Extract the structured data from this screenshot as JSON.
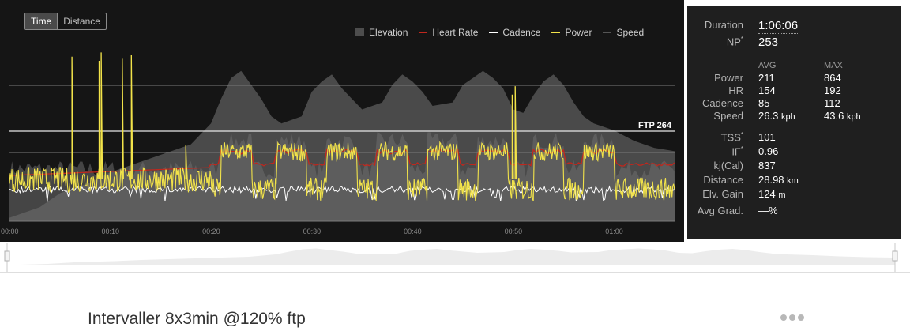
{
  "toggle": {
    "time": "Time",
    "distance": "Distance"
  },
  "legend": [
    {
      "label": "Elevation",
      "color": "#4d4d4d",
      "kind": "box"
    },
    {
      "label": "Heart Rate",
      "color": "#c0271d",
      "kind": "line"
    },
    {
      "label": "Cadence",
      "color": "#ffffff",
      "kind": "line"
    },
    {
      "label": "Power",
      "color": "#f2e34a",
      "kind": "line"
    },
    {
      "label": "Speed",
      "color": "#555555",
      "kind": "line"
    }
  ],
  "ftp_label": "FTP 264",
  "stats": {
    "duration_label": "Duration",
    "duration": "1:06:06",
    "np_label": "NP",
    "np_sup": "*",
    "np": "253",
    "avg_head": "AVG",
    "max_head": "MAX",
    "power_label": "Power",
    "power_avg": "211",
    "power_max": "864",
    "hr_label": "HR",
    "hr_avg": "154",
    "hr_max": "192",
    "cadence_label": "Cadence",
    "cadence_avg": "85",
    "cadence_max": "112",
    "speed_label": "Speed",
    "speed_avg": "26.3",
    "speed_max": "43.6",
    "speed_unit": "kph",
    "tss_label": "TSS",
    "tss_sup": "*",
    "tss": "101",
    "if_label": "IF",
    "if_sup": "*",
    "if": "0.96",
    "kj_label": "kj(Cal)",
    "kj": "837",
    "distance_label": "Distance",
    "distance": "28.98",
    "distance_unit": "km",
    "gain_label": "Elv. Gain",
    "gain": "124",
    "gain_unit": "m",
    "grad_label": "Avg Grad.",
    "grad": "—%"
  },
  "workout_title": "Intervaller 8x3min @120% ftp",
  "chart_data": {
    "type": "line",
    "x_unit": "minutes",
    "xlim": [
      0,
      66.1
    ],
    "x_ticks": [
      0,
      10,
      20,
      30,
      40,
      50,
      60
    ],
    "x_tick_labels": [
      "00:00",
      "00:10",
      "00:20",
      "00:30",
      "00:40",
      "00:50",
      "01:00"
    ],
    "y_power_lim": [
      0,
      880
    ],
    "ftp": 264,
    "intervals": [
      [
        21,
        24
      ],
      [
        26.5,
        29.5
      ],
      [
        31.5,
        34.5
      ],
      [
        36.5,
        39.5
      ],
      [
        41.5,
        44.5
      ],
      [
        46.5,
        49.5
      ],
      [
        52,
        55
      ],
      [
        57,
        60
      ]
    ],
    "elevation_profile": [
      [
        0,
        5
      ],
      [
        3,
        20
      ],
      [
        5,
        40
      ],
      [
        8,
        55
      ],
      [
        10,
        70
      ],
      [
        12,
        80
      ],
      [
        15,
        95
      ],
      [
        18,
        110
      ],
      [
        20,
        140
      ],
      [
        21,
        175
      ],
      [
        22,
        205
      ],
      [
        23,
        215
      ],
      [
        24,
        195
      ],
      [
        25,
        175
      ],
      [
        26,
        150
      ],
      [
        27,
        140
      ],
      [
        29,
        150
      ],
      [
        30,
        185
      ],
      [
        31,
        200
      ],
      [
        32,
        210
      ],
      [
        33,
        190
      ],
      [
        34,
        175
      ],
      [
        35,
        160
      ],
      [
        37,
        170
      ],
      [
        38,
        195
      ],
      [
        39,
        210
      ],
      [
        40,
        200
      ],
      [
        41,
        185
      ],
      [
        42,
        165
      ],
      [
        44,
        170
      ],
      [
        45,
        195
      ],
      [
        46,
        205
      ],
      [
        47,
        215
      ],
      [
        48,
        205
      ],
      [
        49,
        190
      ],
      [
        50,
        160
      ],
      [
        51,
        155
      ],
      [
        52,
        180
      ],
      [
        53,
        200
      ],
      [
        54,
        210
      ],
      [
        55,
        195
      ],
      [
        56,
        170
      ],
      [
        57,
        150
      ],
      [
        58,
        140
      ],
      [
        60,
        130
      ],
      [
        62,
        115
      ],
      [
        64,
        105
      ],
      [
        66.1,
        100
      ]
    ],
    "power_spikes": [
      [
        6.2,
        780
      ],
      [
        8.9,
        760
      ],
      [
        9.1,
        800
      ],
      [
        11.2,
        770
      ],
      [
        12.1,
        790
      ],
      [
        17.5,
        360
      ],
      [
        49.9,
        600
      ],
      [
        50.2,
        640
      ]
    ],
    "power_levels": {
      "base": 185,
      "interval": 330,
      "recovery": 130
    },
    "heart_rate": {
      "start": 110,
      "mid": 150,
      "interval_peak": 175,
      "end": 160
    },
    "cadence_avg": 85,
    "speed_avg": 26.3
  }
}
